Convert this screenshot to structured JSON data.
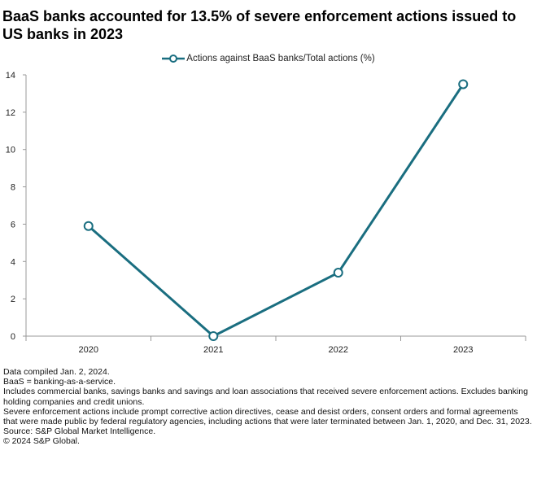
{
  "title": "BaaS banks accounted for 13.5% of severe enforcement actions issued to US banks in 2023",
  "colors": {
    "series": "#1a6e80",
    "axis": "#999999",
    "text": "#222222"
  },
  "chart_data": {
    "type": "line",
    "title": "BaaS banks accounted for 13.5% of severe enforcement actions issued to US banks in 2023",
    "xlabel": "",
    "ylabel": "",
    "categories": [
      "2020",
      "2021",
      "2022",
      "2023"
    ],
    "series": [
      {
        "name": "Actions against BaaS banks/Total actions (%)",
        "values": [
          5.9,
          0.0,
          3.4,
          13.5
        ]
      }
    ],
    "ylim": [
      0,
      14
    ],
    "yticks": [
      "0",
      "2",
      "4",
      "6",
      "8",
      "10",
      "12",
      "14"
    ],
    "grid": false,
    "legend": "top-center",
    "markers": "hollow-circle"
  },
  "footnotes": [
    "Data compiled Jan. 2, 2024.",
    "BaaS = banking-as-a-service.",
    "Includes commercial banks, savings banks and savings and loan associations that received severe enforcement actions. Excludes banking holding companies and credit unions.",
    "Severe enforcement actions include prompt corrective action directives, cease and desist orders, consent orders and formal agreements that were made public by federal regulatory agencies, including actions that were later terminated between Jan. 1, 2020, and Dec. 31, 2023.",
    "Source: S&P Global Market Intelligence.",
    "© 2024 S&P Global."
  ]
}
